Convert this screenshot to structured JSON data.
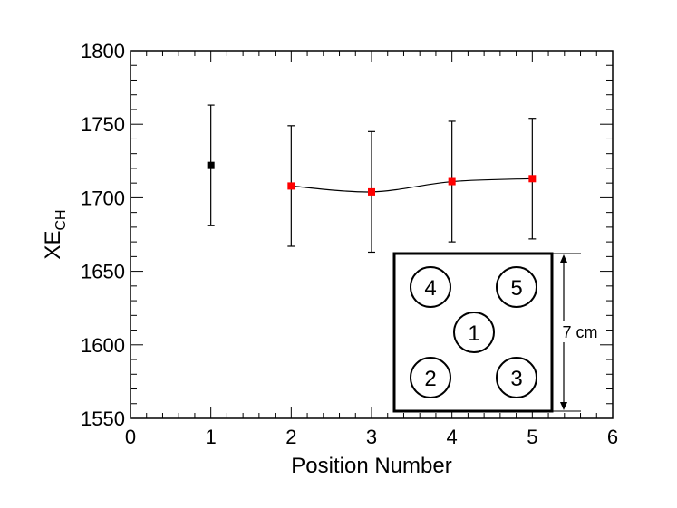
{
  "chart_data": {
    "type": "scatter",
    "xlabel": "Position Number",
    "ylabel": {
      "main": "XE",
      "sub": "CH"
    },
    "xlim": [
      0,
      6
    ],
    "ylim": [
      1550,
      1800
    ],
    "xticks": [
      "0",
      "1",
      "2",
      "3",
      "4",
      "5",
      "6"
    ],
    "yticks": [
      "1550",
      "1600",
      "1650",
      "1700",
      "1750",
      "1800"
    ],
    "grid": false,
    "series": [
      {
        "color": "#000000",
        "connected": false,
        "points": [
          {
            "x": 1,
            "y": 1722,
            "err": 41
          }
        ]
      },
      {
        "color": "#ff0000",
        "connected": true,
        "smooth": true,
        "points": [
          {
            "x": 2,
            "y": 1708,
            "err": 41
          },
          {
            "x": 3,
            "y": 1704,
            "err": 41
          },
          {
            "x": 4,
            "y": 1711,
            "err": 41
          },
          {
            "x": 5,
            "y": 1713,
            "err": 41
          }
        ]
      }
    ],
    "inset": {
      "positions": [
        "4",
        "5",
        "1",
        "2",
        "3"
      ],
      "dimension_label": "7 cm"
    }
  }
}
